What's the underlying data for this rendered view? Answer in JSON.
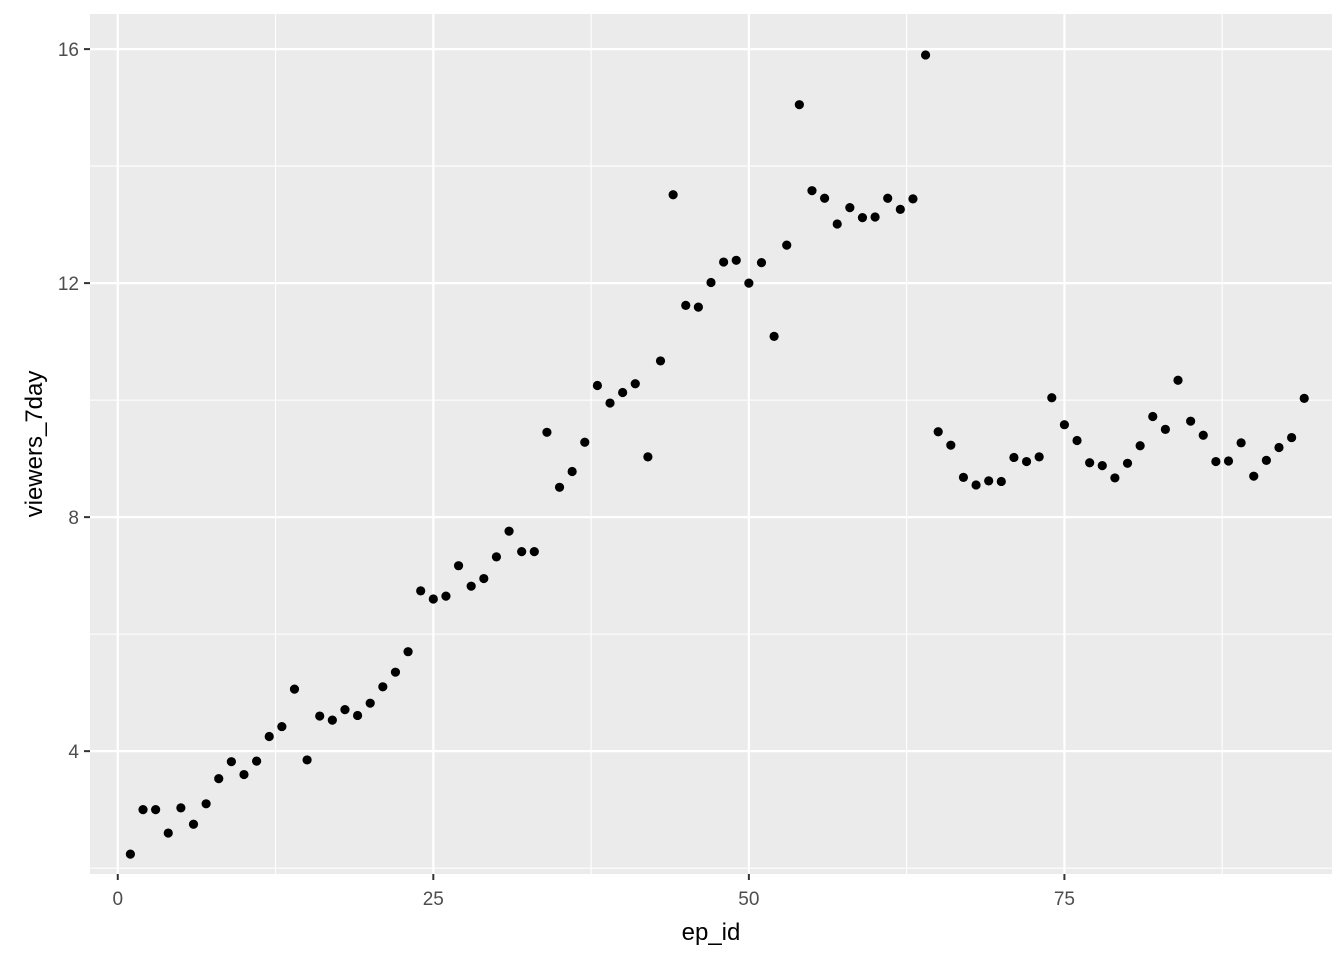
{
  "chart_data": {
    "type": "scatter",
    "title": "",
    "xlabel": "ep_id",
    "ylabel": "viewers_7day",
    "xlim": [
      -2.2,
      96.2
    ],
    "ylim": [
      1.9,
      16.6
    ],
    "x_ticks": [
      0,
      25,
      50,
      75
    ],
    "x_tick_labels": [
      "0",
      "25",
      "50",
      "75"
    ],
    "y_ticks": [
      4,
      8,
      12,
      16
    ],
    "y_tick_labels": [
      "4",
      "8",
      "12",
      "16"
    ],
    "grid": true,
    "legend": "none",
    "colors": {
      "panel": "#EBEBEB",
      "grid": "#FFFFFF",
      "point": "#000000",
      "tick_text": "#4D4D4D",
      "tick_mark": "#333333"
    },
    "points": [
      {
        "x": 1,
        "y": 2.24
      },
      {
        "x": 2,
        "y": 3.0
      },
      {
        "x": 3,
        "y": 3.0
      },
      {
        "x": 4,
        "y": 2.6
      },
      {
        "x": 5,
        "y": 3.03
      },
      {
        "x": 6,
        "y": 2.75
      },
      {
        "x": 7,
        "y": 3.1
      },
      {
        "x": 8,
        "y": 3.53
      },
      {
        "x": 9,
        "y": 3.82
      },
      {
        "x": 10,
        "y": 3.6
      },
      {
        "x": 11,
        "y": 3.83
      },
      {
        "x": 12,
        "y": 4.25
      },
      {
        "x": 13,
        "y": 4.42
      },
      {
        "x": 14,
        "y": 5.06
      },
      {
        "x": 15,
        "y": 3.85
      },
      {
        "x": 16,
        "y": 4.6
      },
      {
        "x": 17,
        "y": 4.53
      },
      {
        "x": 18,
        "y": 4.71
      },
      {
        "x": 19,
        "y": 4.61
      },
      {
        "x": 20,
        "y": 4.82
      },
      {
        "x": 21,
        "y": 5.1
      },
      {
        "x": 22,
        "y": 5.35
      },
      {
        "x": 23,
        "y": 5.7
      },
      {
        "x": 24,
        "y": 6.74
      },
      {
        "x": 25,
        "y": 6.6
      },
      {
        "x": 26,
        "y": 6.65
      },
      {
        "x": 27,
        "y": 7.17
      },
      {
        "x": 28,
        "y": 6.82
      },
      {
        "x": 29,
        "y": 6.95
      },
      {
        "x": 30,
        "y": 7.32
      },
      {
        "x": 31,
        "y": 7.76
      },
      {
        "x": 32,
        "y": 7.41
      },
      {
        "x": 33,
        "y": 7.41
      },
      {
        "x": 34,
        "y": 9.45
      },
      {
        "x": 35,
        "y": 8.51
      },
      {
        "x": 36,
        "y": 8.78
      },
      {
        "x": 37,
        "y": 9.28
      },
      {
        "x": 38,
        "y": 10.25
      },
      {
        "x": 39,
        "y": 9.95
      },
      {
        "x": 40,
        "y": 10.13
      },
      {
        "x": 41,
        "y": 10.28
      },
      {
        "x": 42,
        "y": 9.03
      },
      {
        "x": 43,
        "y": 10.67
      },
      {
        "x": 44,
        "y": 13.51
      },
      {
        "x": 45,
        "y": 11.62
      },
      {
        "x": 46,
        "y": 11.59
      },
      {
        "x": 47,
        "y": 12.01
      },
      {
        "x": 48,
        "y": 12.36
      },
      {
        "x": 49,
        "y": 12.39
      },
      {
        "x": 50,
        "y": 12.0
      },
      {
        "x": 51,
        "y": 12.35
      },
      {
        "x": 52,
        "y": 11.09
      },
      {
        "x": 53,
        "y": 12.65
      },
      {
        "x": 54,
        "y": 15.05
      },
      {
        "x": 55,
        "y": 13.58
      },
      {
        "x": 56,
        "y": 13.45
      },
      {
        "x": 57,
        "y": 13.01
      },
      {
        "x": 58,
        "y": 13.29
      },
      {
        "x": 59,
        "y": 13.12
      },
      {
        "x": 60,
        "y": 13.13
      },
      {
        "x": 61,
        "y": 13.45
      },
      {
        "x": 62,
        "y": 13.26
      },
      {
        "x": 63,
        "y": 13.44
      },
      {
        "x": 64,
        "y": 15.9
      },
      {
        "x": 65,
        "y": 9.46
      },
      {
        "x": 66,
        "y": 9.23
      },
      {
        "x": 67,
        "y": 8.68
      },
      {
        "x": 68,
        "y": 8.55
      },
      {
        "x": 69,
        "y": 8.62
      },
      {
        "x": 70,
        "y": 8.61
      },
      {
        "x": 71,
        "y": 9.02
      },
      {
        "x": 72,
        "y": 8.95
      },
      {
        "x": 73,
        "y": 9.03
      },
      {
        "x": 74,
        "y": 10.04
      },
      {
        "x": 75,
        "y": 9.58
      },
      {
        "x": 76,
        "y": 9.31
      },
      {
        "x": 77,
        "y": 8.93
      },
      {
        "x": 78,
        "y": 8.88
      },
      {
        "x": 79,
        "y": 8.67
      },
      {
        "x": 80,
        "y": 8.92
      },
      {
        "x": 81,
        "y": 9.22
      },
      {
        "x": 82,
        "y": 9.72
      },
      {
        "x": 83,
        "y": 9.5
      },
      {
        "x": 84,
        "y": 10.34
      },
      {
        "x": 85,
        "y": 9.64
      },
      {
        "x": 86,
        "y": 9.4
      },
      {
        "x": 87,
        "y": 8.95
      },
      {
        "x": 88,
        "y": 8.96
      },
      {
        "x": 89,
        "y": 9.27
      },
      {
        "x": 90,
        "y": 8.7
      },
      {
        "x": 91,
        "y": 8.97
      },
      {
        "x": 92,
        "y": 9.19
      },
      {
        "x": 93,
        "y": 9.36
      },
      {
        "x": 94,
        "y": 10.03
      }
    ]
  }
}
